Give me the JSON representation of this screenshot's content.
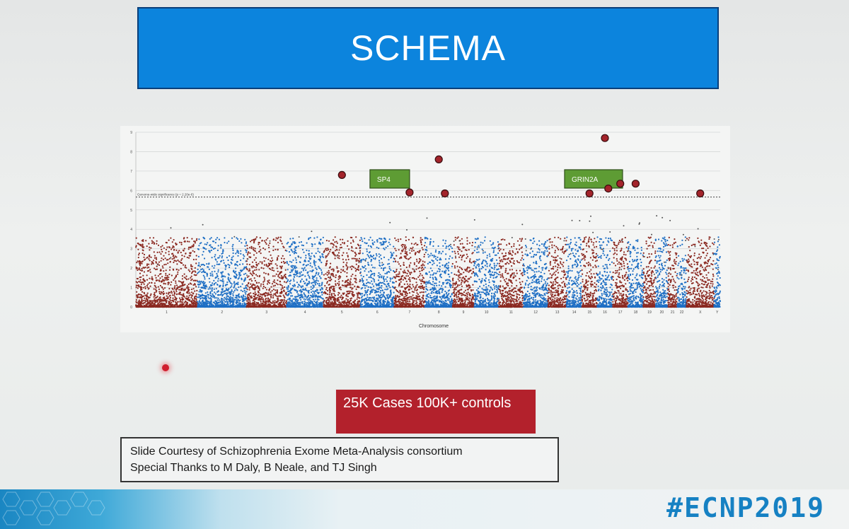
{
  "slide": {
    "title": "SCHEMA",
    "stats_text": "25K Cases 100K+ controls",
    "credit_line1": "Slide Courtesy of Schizophrenia Exome Meta-Analysis consortium",
    "credit_line2": "Special Thanks to M Daly, B Neale, and TJ Singh",
    "footer_hashtag": "#ECNP2019"
  },
  "colors": {
    "title_bg": "#0c84dd",
    "stats_bg": "#b3212c",
    "chrom_odd": "#8b2a22",
    "chrom_even": "#1f6fc4",
    "highlight": "#a3242b",
    "gene_label_bg": "#5e9c34",
    "hashtag": "#1681c3"
  },
  "chart_data": {
    "type": "scatter",
    "title": "",
    "xlabel": "Chromosome",
    "ylabel": "",
    "ylim": [
      0,
      9
    ],
    "yticks": [
      0,
      1,
      2,
      3,
      4,
      5,
      6,
      7,
      8,
      9
    ],
    "grid": true,
    "x_tick_labels": [
      "1",
      "2",
      "3",
      "4",
      "5",
      "6",
      "7",
      "8",
      "9",
      "10",
      "11",
      "12",
      "13",
      "14",
      "15",
      "16",
      "17",
      "18",
      "19",
      "20",
      "21",
      "22",
      "X",
      "Y"
    ],
    "significance_line": {
      "label": "Genome-wide significance (p = 2.20e-6)",
      "value": 5.66
    },
    "gene_labels": [
      {
        "text": "SP4",
        "chromosome": "7"
      },
      {
        "text": "GRIN2A",
        "chromosome": "16"
      }
    ],
    "highlighted_points": [
      {
        "chromosome": "5",
        "y": 6.8
      },
      {
        "chromosome": "7",
        "y": 5.9
      },
      {
        "chromosome": "8",
        "y": 7.6
      },
      {
        "chromosome": "8",
        "y": 5.85
      },
      {
        "chromosome": "15",
        "y": 5.85
      },
      {
        "chromosome": "16",
        "y": 8.7
      },
      {
        "chromosome": "16",
        "y": 6.1
      },
      {
        "chromosome": "17",
        "y": 6.35
      },
      {
        "chromosome": "18",
        "y": 6.35
      },
      {
        "chromosome": "X",
        "y": 5.85
      }
    ]
  }
}
